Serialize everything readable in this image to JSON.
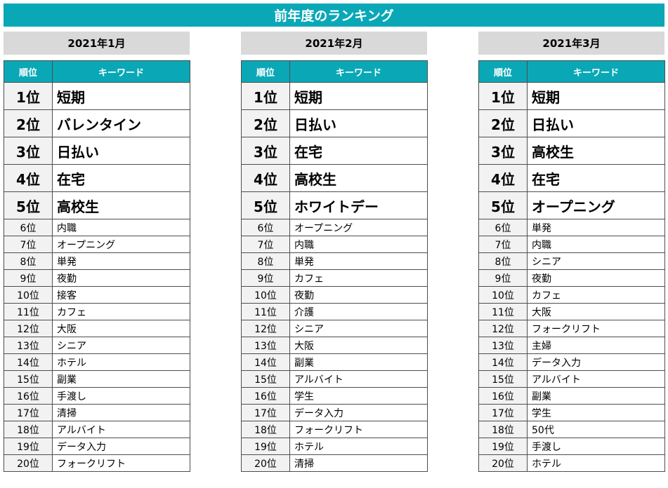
{
  "title": "前年度のランキング",
  "column_headers": {
    "rank": "順位",
    "keyword": "キーワード"
  },
  "colors": {
    "accent": "#0aa8b6",
    "month_header_bg": "#d9d9d9",
    "rank_cell_bg": "#f2f2f2"
  },
  "months": [
    {
      "label": "2021年1月",
      "rows": [
        {
          "rank": "1位",
          "keyword": "短期"
        },
        {
          "rank": "2位",
          "keyword": "バレンタイン"
        },
        {
          "rank": "3位",
          "keyword": "日払い"
        },
        {
          "rank": "4位",
          "keyword": "在宅"
        },
        {
          "rank": "5位",
          "keyword": "高校生"
        },
        {
          "rank": "6位",
          "keyword": "内職"
        },
        {
          "rank": "7位",
          "keyword": "オープニング"
        },
        {
          "rank": "8位",
          "keyword": "単発"
        },
        {
          "rank": "9位",
          "keyword": "夜勤"
        },
        {
          "rank": "10位",
          "keyword": "接客"
        },
        {
          "rank": "11位",
          "keyword": "カフェ"
        },
        {
          "rank": "12位",
          "keyword": "大阪"
        },
        {
          "rank": "13位",
          "keyword": "シニア"
        },
        {
          "rank": "14位",
          "keyword": "ホテル"
        },
        {
          "rank": "15位",
          "keyword": "副業"
        },
        {
          "rank": "16位",
          "keyword": "手渡し"
        },
        {
          "rank": "17位",
          "keyword": "清掃"
        },
        {
          "rank": "18位",
          "keyword": "アルバイト"
        },
        {
          "rank": "19位",
          "keyword": "データ入力"
        },
        {
          "rank": "20位",
          "keyword": "フォークリフト"
        }
      ]
    },
    {
      "label": "2021年2月",
      "rows": [
        {
          "rank": "1位",
          "keyword": "短期"
        },
        {
          "rank": "2位",
          "keyword": "日払い"
        },
        {
          "rank": "3位",
          "keyword": "在宅"
        },
        {
          "rank": "4位",
          "keyword": "高校生"
        },
        {
          "rank": "5位",
          "keyword": "ホワイトデー"
        },
        {
          "rank": "6位",
          "keyword": "オープニング"
        },
        {
          "rank": "7位",
          "keyword": "内職"
        },
        {
          "rank": "8位",
          "keyword": "単発"
        },
        {
          "rank": "9位",
          "keyword": "カフェ"
        },
        {
          "rank": "10位",
          "keyword": "夜勤"
        },
        {
          "rank": "11位",
          "keyword": "介護"
        },
        {
          "rank": "12位",
          "keyword": "シニア"
        },
        {
          "rank": "13位",
          "keyword": "大阪"
        },
        {
          "rank": "14位",
          "keyword": "副業"
        },
        {
          "rank": "15位",
          "keyword": "アルバイト"
        },
        {
          "rank": "16位",
          "keyword": "学生"
        },
        {
          "rank": "17位",
          "keyword": "データ入力"
        },
        {
          "rank": "18位",
          "keyword": "フォークリフト"
        },
        {
          "rank": "19位",
          "keyword": "ホテル"
        },
        {
          "rank": "20位",
          "keyword": "清掃"
        }
      ]
    },
    {
      "label": "2021年3月",
      "rows": [
        {
          "rank": "1位",
          "keyword": "短期"
        },
        {
          "rank": "2位",
          "keyword": "日払い"
        },
        {
          "rank": "3位",
          "keyword": "高校生"
        },
        {
          "rank": "4位",
          "keyword": "在宅"
        },
        {
          "rank": "5位",
          "keyword": "オープニング"
        },
        {
          "rank": "6位",
          "keyword": "単発"
        },
        {
          "rank": "7位",
          "keyword": "内職"
        },
        {
          "rank": "8位",
          "keyword": "シニア"
        },
        {
          "rank": "9位",
          "keyword": "夜勤"
        },
        {
          "rank": "10位",
          "keyword": "カフェ"
        },
        {
          "rank": "11位",
          "keyword": "大阪"
        },
        {
          "rank": "12位",
          "keyword": "フォークリフト"
        },
        {
          "rank": "13位",
          "keyword": "主婦"
        },
        {
          "rank": "14位",
          "keyword": "データ入力"
        },
        {
          "rank": "15位",
          "keyword": "アルバイト"
        },
        {
          "rank": "16位",
          "keyword": "副業"
        },
        {
          "rank": "17位",
          "keyword": "学生"
        },
        {
          "rank": "18位",
          "keyword": "50代"
        },
        {
          "rank": "19位",
          "keyword": "手渡し"
        },
        {
          "rank": "20位",
          "keyword": "ホテル"
        }
      ]
    }
  ]
}
